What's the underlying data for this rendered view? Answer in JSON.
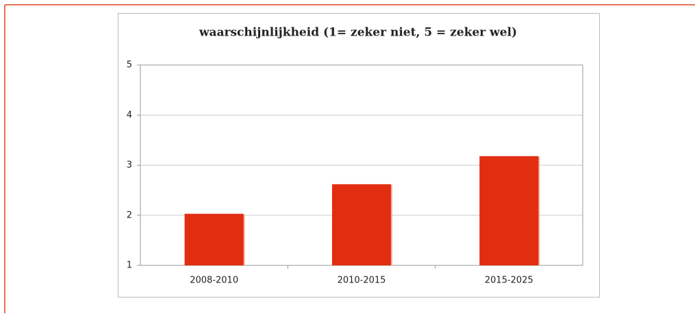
{
  "chart_data": {
    "type": "bar",
    "title": "waarschijnlijkheid (1= zeker niet, 5 = zeker wel)",
    "categories": [
      "2008-2010",
      "2010-2015",
      "2015-2025"
    ],
    "values": [
      2.03,
      2.62,
      3.18
    ],
    "color": "#e22d10",
    "ylim": [
      1,
      5
    ],
    "yticks": [
      1,
      2,
      3,
      4,
      5
    ],
    "grid": true
  }
}
